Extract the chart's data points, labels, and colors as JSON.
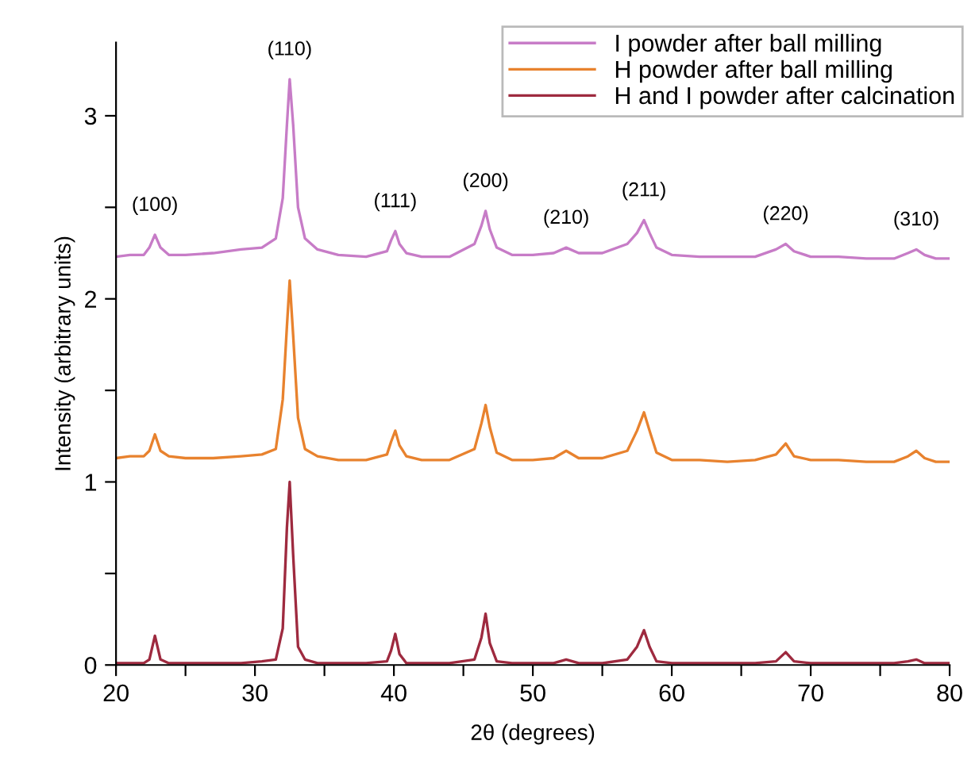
{
  "chart_data": {
    "type": "line",
    "xlabel": "2θ (degrees)",
    "ylabel": "Intensity (arbitrary units)",
    "x": [
      20,
      21,
      22,
      22.4,
      22.8,
      23.2,
      23.8,
      25,
      27,
      29,
      30.5,
      31.5,
      32.0,
      32.3,
      32.5,
      32.75,
      33.1,
      33.6,
      34.5,
      36,
      38,
      39.5,
      39.8,
      40.1,
      40.4,
      40.9,
      42,
      44,
      45.8,
      46.3,
      46.6,
      46.9,
      47.4,
      48.5,
      50,
      51.5,
      52.4,
      53.3,
      55,
      56.8,
      57.5,
      58.0,
      58.4,
      58.9,
      60,
      62,
      64,
      66,
      67.5,
      68.2,
      68.8,
      70,
      72,
      74,
      76,
      77.0,
      77.6,
      78.2,
      79,
      80
    ],
    "series": [
      {
        "name": "I powder after ball milling",
        "color": "#c77cc7",
        "values": [
          2.23,
          2.24,
          2.24,
          2.28,
          2.35,
          2.28,
          2.24,
          2.24,
          2.25,
          2.27,
          2.28,
          2.33,
          2.55,
          2.95,
          3.2,
          2.95,
          2.5,
          2.33,
          2.27,
          2.24,
          2.23,
          2.26,
          2.32,
          2.37,
          2.3,
          2.25,
          2.23,
          2.23,
          2.3,
          2.4,
          2.48,
          2.38,
          2.28,
          2.24,
          2.24,
          2.25,
          2.28,
          2.25,
          2.25,
          2.3,
          2.36,
          2.43,
          2.36,
          2.28,
          2.24,
          2.23,
          2.23,
          2.23,
          2.27,
          2.3,
          2.26,
          2.23,
          2.23,
          2.22,
          2.22,
          2.25,
          2.27,
          2.24,
          2.22,
          2.22
        ]
      },
      {
        "name": "H powder after ball milling",
        "color": "#e8822e",
        "values": [
          1.13,
          1.14,
          1.14,
          1.17,
          1.26,
          1.17,
          1.14,
          1.13,
          1.13,
          1.14,
          1.15,
          1.18,
          1.45,
          1.85,
          2.1,
          1.8,
          1.35,
          1.18,
          1.14,
          1.12,
          1.12,
          1.15,
          1.22,
          1.28,
          1.2,
          1.14,
          1.12,
          1.12,
          1.18,
          1.32,
          1.42,
          1.3,
          1.16,
          1.12,
          1.12,
          1.13,
          1.17,
          1.13,
          1.13,
          1.17,
          1.28,
          1.38,
          1.28,
          1.16,
          1.12,
          1.12,
          1.11,
          1.12,
          1.15,
          1.21,
          1.14,
          1.12,
          1.12,
          1.11,
          1.11,
          1.14,
          1.17,
          1.13,
          1.11,
          1.11
        ]
      },
      {
        "name": "H and I powder after calcination",
        "color": "#9e2a3f",
        "values": [
          0.01,
          0.01,
          0.01,
          0.03,
          0.16,
          0.03,
          0.01,
          0.01,
          0.01,
          0.01,
          0.02,
          0.03,
          0.2,
          0.75,
          1.0,
          0.6,
          0.1,
          0.03,
          0.01,
          0.01,
          0.01,
          0.02,
          0.08,
          0.17,
          0.06,
          0.01,
          0.01,
          0.01,
          0.03,
          0.15,
          0.28,
          0.12,
          0.02,
          0.01,
          0.01,
          0.01,
          0.03,
          0.01,
          0.01,
          0.03,
          0.1,
          0.19,
          0.1,
          0.02,
          0.01,
          0.01,
          0.01,
          0.01,
          0.02,
          0.07,
          0.02,
          0.01,
          0.01,
          0.01,
          0.01,
          0.02,
          0.03,
          0.01,
          0.01,
          0.01
        ]
      }
    ],
    "annotations": [
      {
        "text": "(100)",
        "x": 22.8,
        "y": 2.35
      },
      {
        "text": "(110)",
        "x": 32.5,
        "y": 3.2
      },
      {
        "text": "(111)",
        "x": 40.1,
        "y": 2.37
      },
      {
        "text": "(200)",
        "x": 46.6,
        "y": 2.48
      },
      {
        "text": "(210)",
        "x": 52.4,
        "y": 2.28
      },
      {
        "text": "(211)",
        "x": 58.0,
        "y": 2.43
      },
      {
        "text": "(220)",
        "x": 68.2,
        "y": 2.3
      },
      {
        "text": "(310)",
        "x": 77.6,
        "y": 2.27
      }
    ],
    "xlim": [
      20,
      80
    ],
    "xticks": [
      20,
      {
        "value": 25,
        "label": null
      },
      30,
      {
        "value": 35,
        "label": null
      },
      40,
      {
        "value": 45,
        "label": null
      },
      50,
      {
        "value": 55,
        "label": null
      },
      60,
      {
        "value": 65,
        "label": null
      },
      70,
      {
        "value": 75,
        "label": null
      },
      80
    ],
    "ylim": [
      0,
      3.4
    ],
    "yticks": [
      0,
      {
        "value": 0.5,
        "label": null
      },
      1,
      {
        "value": 1.5,
        "label": null
      },
      2,
      {
        "value": 2.5,
        "label": null
      },
      3
    ],
    "grid": false,
    "legend": "top right",
    "marker": "none",
    "line_style": "solid"
  }
}
